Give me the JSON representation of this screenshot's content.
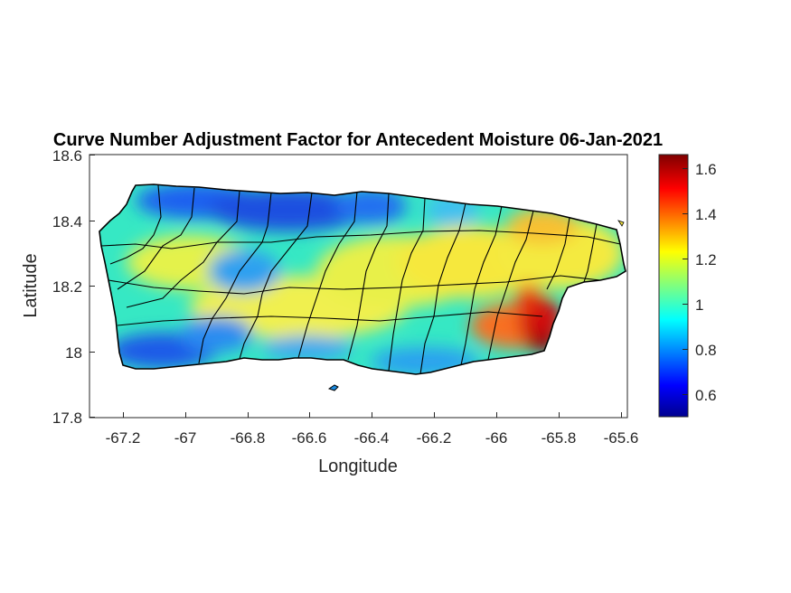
{
  "title": "Curve Number Adjustment Factor for Antecedent Moisture 06-Jan-2021",
  "xlabel": "Longitude",
  "ylabel": "Latitude",
  "x_ticks": [
    "-67.2",
    "-67",
    "-66.8",
    "-66.6",
    "-66.4",
    "-66.2",
    "-66",
    "-65.8",
    "-65.6"
  ],
  "y_ticks": [
    "18.6",
    "18.4",
    "18.2",
    "18",
    "17.8"
  ],
  "colorbar": {
    "ticks": [
      "1.6",
      "1.4",
      "1.2",
      "1",
      "0.8",
      "0.6"
    ],
    "colormap": "jet",
    "range": [
      0.5,
      1.66
    ]
  },
  "map_data": {
    "region": "Puerto Rico",
    "xlim": [
      -67.3,
      -65.57
    ],
    "ylim": [
      17.8,
      18.6
    ],
    "boundaries": "municipality outlines",
    "notable_patterns": [
      {
        "area": "north-central coast",
        "approx_value": 0.7
      },
      {
        "area": "southwest coast",
        "approx_value": 0.75
      },
      {
        "area": "central interior",
        "approx_value": 1.15
      },
      {
        "area": "southeast (Humacao/Yabucoa)",
        "approx_value": 1.55
      },
      {
        "area": "northeast",
        "approx_value": 1.2
      }
    ]
  }
}
